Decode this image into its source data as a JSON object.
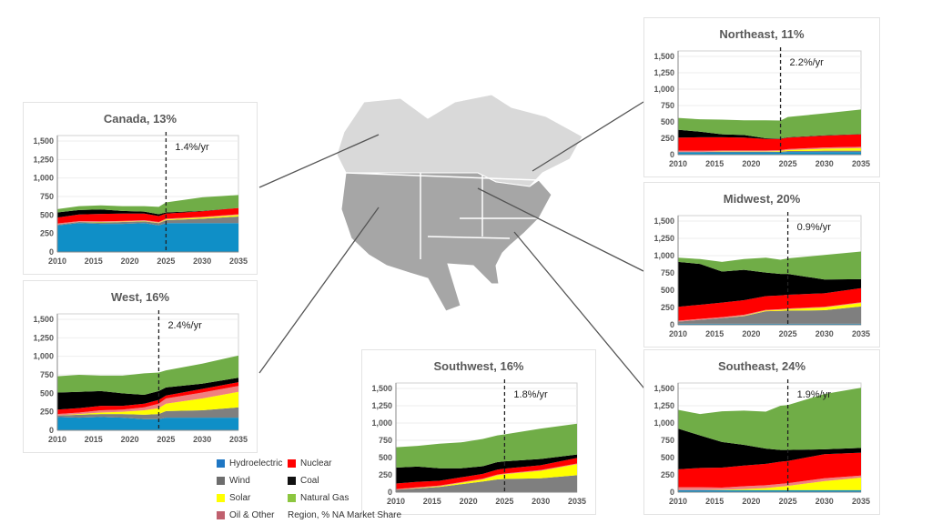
{
  "colors": {
    "Hydroelectric": "#0f8fc7",
    "Wind": "#7f7f7f",
    "Solar": "#ffff00",
    "Oil & Other": "#f08080",
    "Nuclear": "#ff0000",
    "Coal": "#000000",
    "Natural Gas": "#70ad47"
  },
  "legend": {
    "items": [
      {
        "label": "Hydroelectric",
        "color": "#1f77c4"
      },
      {
        "label": "Nuclear",
        "color": "#ff0000"
      },
      {
        "label": "Wind",
        "color": "#6d6d6d"
      },
      {
        "label": "Coal",
        "color": "#111111"
      },
      {
        "label": "Solar",
        "color": "#ffff00"
      },
      {
        "label": "Natural Gas",
        "color": "#8cc63f"
      },
      {
        "label": "Oil & Other",
        "color": "#c0606e"
      }
    ],
    "note": "Region, % NA Market Share"
  },
  "chart_data": [
    {
      "id": "canada",
      "type": "area",
      "stacked": true,
      "title": "Canada, 13%",
      "annotation": "1.4%/yr",
      "forecast_year": 2025,
      "ylim": [
        0,
        1500
      ],
      "yticks": [
        "0",
        "250",
        "500",
        "750",
        "1,000",
        "1,250",
        "1,500"
      ],
      "xticks": [
        "2010",
        "2015",
        "2020",
        "2025",
        "2030",
        "2035"
      ],
      "x": [
        2010,
        2013,
        2016,
        2019,
        2022,
        2024,
        2025,
        2030,
        2035
      ],
      "series": [
        {
          "name": "Hydroelectric",
          "values": [
            360,
            390,
            380,
            380,
            390,
            360,
            390,
            390,
            390
          ]
        },
        {
          "name": "Wind",
          "values": [
            10,
            15,
            20,
            25,
            25,
            30,
            40,
            60,
            90
          ]
        },
        {
          "name": "Solar",
          "values": [
            0,
            2,
            5,
            5,
            5,
            5,
            10,
            15,
            20
          ]
        },
        {
          "name": "Oil & Other",
          "values": [
            15,
            10,
            10,
            10,
            10,
            10,
            10,
            10,
            10
          ]
        },
        {
          "name": "Nuclear",
          "values": [
            80,
            90,
            100,
            100,
            90,
            80,
            70,
            75,
            85
          ]
        },
        {
          "name": "Coal",
          "values": [
            70,
            60,
            60,
            35,
            25,
            25,
            15,
            5,
            0
          ]
        },
        {
          "name": "Natural Gas",
          "values": [
            45,
            53,
            55,
            65,
            75,
            100,
            135,
            185,
            175
          ]
        }
      ]
    },
    {
      "id": "west",
      "type": "area",
      "stacked": true,
      "title": "West, 16%",
      "annotation": "2.4%/yr",
      "forecast_year": 2024,
      "ylim": [
        0,
        1500
      ],
      "yticks": [
        "0",
        "250",
        "500",
        "750",
        "1,000",
        "1,250",
        "1,500"
      ],
      "xticks": [
        "2010",
        "2015",
        "2020",
        "2025",
        "2030",
        "2035"
      ],
      "x": [
        2010,
        2013,
        2016,
        2019,
        2022,
        2024,
        2025,
        2030,
        2035
      ],
      "series": [
        {
          "name": "Hydroelectric",
          "values": [
            180,
            170,
            180,
            170,
            150,
            150,
            170,
            170,
            170
          ]
        },
        {
          "name": "Wind",
          "values": [
            20,
            40,
            40,
            50,
            60,
            70,
            90,
            100,
            140
          ]
        },
        {
          "name": "Solar",
          "values": [
            0,
            10,
            20,
            30,
            60,
            80,
            100,
            160,
            210
          ]
        },
        {
          "name": "Oil & Other",
          "values": [
            20,
            20,
            30,
            30,
            40,
            60,
            70,
            80,
            80
          ]
        },
        {
          "name": "Nuclear",
          "values": [
            60,
            60,
            60,
            50,
            50,
            50,
            40,
            50,
            50
          ]
        },
        {
          "name": "Coal",
          "values": [
            230,
            220,
            200,
            170,
            120,
            120,
            110,
            70,
            60
          ]
        },
        {
          "name": "Natural Gas",
          "values": [
            220,
            230,
            210,
            240,
            290,
            250,
            230,
            270,
            300
          ]
        }
      ]
    },
    {
      "id": "northeast",
      "type": "area",
      "stacked": true,
      "title": "Northeast, 11%",
      "annotation": "2.2%/yr",
      "forecast_year": 2024,
      "ylim": [
        0,
        1500
      ],
      "yticks": [
        "0",
        "250",
        "500",
        "750",
        "1,000",
        "1,250",
        "1,500"
      ],
      "xticks": [
        "2010",
        "2015",
        "2020",
        "2025",
        "2030",
        "2035"
      ],
      "x": [
        2010,
        2013,
        2016,
        2019,
        2022,
        2024,
        2025,
        2030,
        2035
      ],
      "series": [
        {
          "name": "Hydroelectric",
          "values": [
            35,
            35,
            35,
            35,
            35,
            35,
            40,
            40,
            40
          ]
        },
        {
          "name": "Wind",
          "values": [
            5,
            5,
            10,
            10,
            10,
            10,
            15,
            20,
            20
          ]
        },
        {
          "name": "Solar",
          "values": [
            0,
            0,
            5,
            5,
            5,
            10,
            15,
            30,
            40
          ]
        },
        {
          "name": "Oil & Other",
          "values": [
            20,
            20,
            15,
            15,
            15,
            15,
            15,
            20,
            20
          ]
        },
        {
          "name": "Nuclear",
          "values": [
            200,
            205,
            200,
            195,
            175,
            170,
            175,
            180,
            190
          ]
        },
        {
          "name": "Coal",
          "values": [
            120,
            85,
            45,
            40,
            10,
            5,
            5,
            5,
            5
          ]
        },
        {
          "name": "Natural Gas",
          "values": [
            180,
            190,
            225,
            225,
            275,
            275,
            310,
            335,
            375
          ]
        }
      ]
    },
    {
      "id": "midwest",
      "type": "area",
      "stacked": true,
      "title": "Midwest, 20%",
      "annotation": "0.9%/yr",
      "forecast_year": 2025,
      "ylim": [
        0,
        1500
      ],
      "yticks": [
        "0",
        "250",
        "500",
        "750",
        "1,000",
        "1,250",
        "1,500"
      ],
      "xticks": [
        "2010",
        "2015",
        "2020",
        "2025",
        "2030",
        "2035"
      ],
      "x": [
        2010,
        2013,
        2016,
        2019,
        2022,
        2024,
        2025,
        2030,
        2035
      ],
      "series": [
        {
          "name": "Hydroelectric",
          "values": [
            15,
            15,
            15,
            15,
            15,
            15,
            15,
            15,
            15
          ]
        },
        {
          "name": "Wind",
          "values": [
            30,
            55,
            80,
            110,
            180,
            185,
            190,
            195,
            250
          ]
        },
        {
          "name": "Solar",
          "values": [
            0,
            0,
            0,
            5,
            10,
            15,
            20,
            40,
            50
          ]
        },
        {
          "name": "Oil & Other",
          "values": [
            15,
            15,
            15,
            15,
            10,
            10,
            10,
            10,
            10
          ]
        },
        {
          "name": "Nuclear",
          "values": [
            200,
            205,
            210,
            210,
            200,
            200,
            200,
            195,
            205
          ]
        },
        {
          "name": "Coal",
          "values": [
            650,
            590,
            450,
            440,
            340,
            310,
            300,
            200,
            130
          ]
        },
        {
          "name": "Natural Gas",
          "values": [
            60,
            70,
            140,
            155,
            215,
            205,
            225,
            355,
            400
          ]
        }
      ]
    },
    {
      "id": "southeast",
      "type": "area",
      "stacked": true,
      "title": "Southeast, 24%",
      "annotation": "1.9%/yr",
      "forecast_year": 2025,
      "ylim": [
        0,
        1500
      ],
      "yticks": [
        "0",
        "250",
        "500",
        "750",
        "1,000",
        "1,250",
        "1,500"
      ],
      "xticks": [
        "2010",
        "2015",
        "2020",
        "2025",
        "2030",
        "2035"
      ],
      "x": [
        2010,
        2013,
        2016,
        2019,
        2022,
        2024,
        2025,
        2030,
        2035
      ],
      "series": [
        {
          "name": "Hydroelectric",
          "values": [
            30,
            30,
            30,
            30,
            30,
            30,
            30,
            30,
            30
          ]
        },
        {
          "name": "Wind",
          "values": [
            0,
            0,
            0,
            0,
            0,
            0,
            0,
            0,
            0
          ]
        },
        {
          "name": "Solar",
          "values": [
            0,
            0,
            5,
            15,
            30,
            50,
            60,
            130,
            180
          ]
        },
        {
          "name": "Oil & Other",
          "values": [
            40,
            40,
            30,
            40,
            40,
            40,
            40,
            40,
            30
          ]
        },
        {
          "name": "Nuclear",
          "values": [
            260,
            280,
            290,
            300,
            310,
            320,
            320,
            350,
            330
          ]
        },
        {
          "name": "Coal",
          "values": [
            590,
            470,
            370,
            300,
            220,
            170,
            160,
            70,
            70
          ]
        },
        {
          "name": "Natural Gas",
          "values": [
            270,
            310,
            445,
            495,
            535,
            640,
            650,
            800,
            870
          ]
        }
      ]
    },
    {
      "id": "southwest",
      "type": "area",
      "stacked": true,
      "title": "Southwest, 16%",
      "annotation": "1.8%/yr",
      "forecast_year": 2025,
      "ylim": [
        0,
        1500
      ],
      "yticks": [
        "0",
        "250",
        "500",
        "750",
        "1,000",
        "1,250",
        "1,500"
      ],
      "xticks": [
        "2010",
        "2015",
        "2020",
        "2025",
        "2030",
        "2035"
      ],
      "x": [
        2010,
        2013,
        2016,
        2019,
        2022,
        2024,
        2025,
        2030,
        2035
      ],
      "series": [
        {
          "name": "Hydroelectric",
          "values": [
            5,
            5,
            5,
            5,
            5,
            5,
            5,
            5,
            5
          ]
        },
        {
          "name": "Wind",
          "values": [
            30,
            50,
            70,
            110,
            150,
            180,
            185,
            195,
            240
          ]
        },
        {
          "name": "Solar",
          "values": [
            0,
            5,
            10,
            20,
            30,
            60,
            70,
            110,
            160
          ]
        },
        {
          "name": "Oil & Other",
          "values": [
            10,
            10,
            10,
            10,
            10,
            10,
            10,
            10,
            10
          ]
        },
        {
          "name": "Nuclear",
          "values": [
            80,
            80,
            70,
            70,
            70,
            70,
            70,
            70,
            80
          ]
        },
        {
          "name": "Coal",
          "values": [
            230,
            220,
            180,
            130,
            110,
            110,
            105,
            90,
            50
          ]
        },
        {
          "name": "Natural Gas",
          "values": [
            295,
            300,
            355,
            375,
            395,
            385,
            390,
            440,
            445
          ]
        }
      ]
    }
  ]
}
